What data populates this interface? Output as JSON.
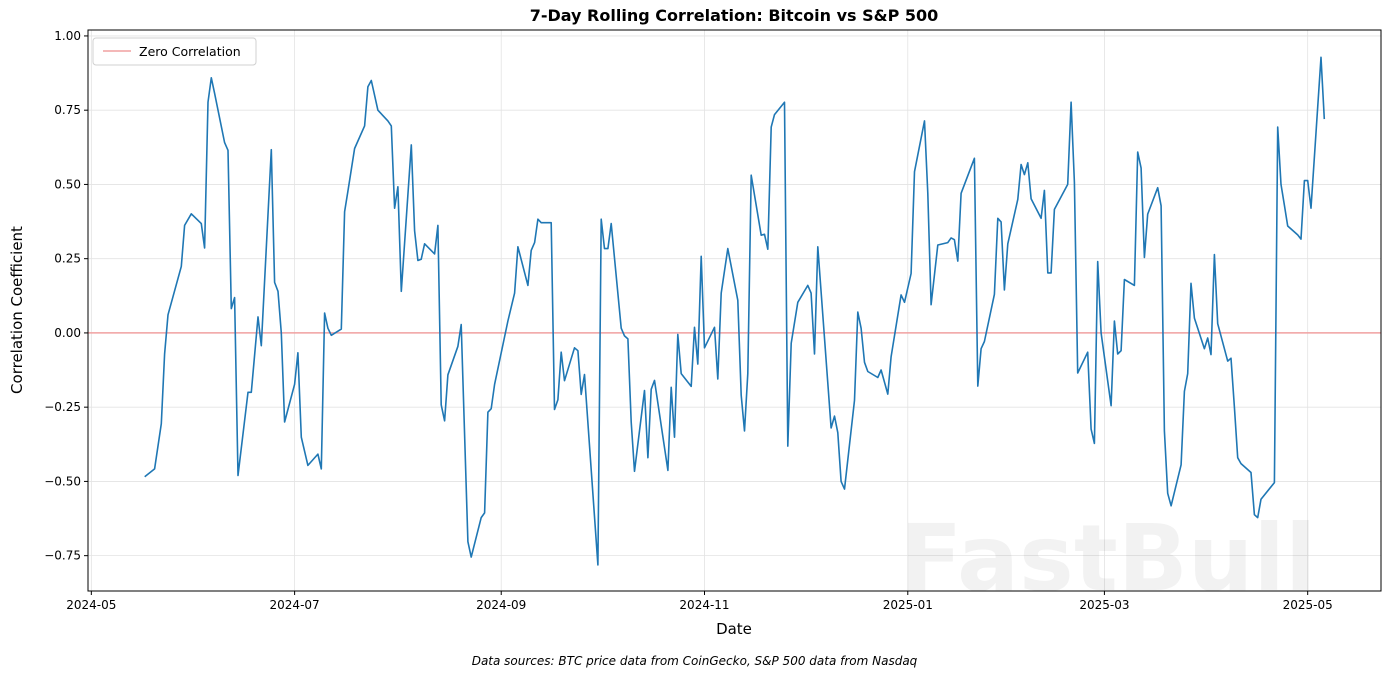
{
  "chart_data": {
    "type": "line",
    "title": "7-Day Rolling Correlation: Bitcoin vs S&P 500",
    "xlabel": "Date",
    "ylabel": "Correlation Coefficient",
    "xlim": [
      "2024-04-30",
      "2025-05-23"
    ],
    "ylim": [
      -0.869,
      1.02
    ],
    "x_ticks": [
      "2024-05",
      "2024-07",
      "2024-09",
      "2024-11",
      "2025-01",
      "2025-03",
      "2025-05"
    ],
    "y_ticks": [
      1.0,
      0.75,
      0.5,
      0.25,
      0.0,
      -0.25,
      -0.5,
      -0.75
    ],
    "y_tick_labels": [
      "1.00",
      "0.75",
      "0.50",
      "0.25",
      "0.00",
      "−0.25",
      "−0.50",
      "−0.75"
    ],
    "grid": true,
    "legend_position": "top-left",
    "reference_line": {
      "name": "Zero Correlation",
      "y": 0,
      "color": "#f0a0a0"
    },
    "series": [
      {
        "color": "#1f77b4",
        "x": [
          "2024-05-17",
          "2024-05-20",
          "2024-05-22",
          "2024-05-23",
          "2024-05-24",
          "2024-05-28",
          "2024-05-29",
          "2024-05-31",
          "2024-06-03",
          "2024-06-04",
          "2024-06-05",
          "2024-06-06",
          "2024-06-07",
          "2024-06-10",
          "2024-06-11",
          "2024-06-12",
          "2024-06-13",
          "2024-06-14",
          "2024-06-17",
          "2024-06-18",
          "2024-06-20",
          "2024-06-21",
          "2024-06-24",
          "2024-06-25",
          "2024-06-26",
          "2024-06-27",
          "2024-06-28",
          "2024-07-01",
          "2024-07-02",
          "2024-07-03",
          "2024-07-05",
          "2024-07-08",
          "2024-07-09",
          "2024-07-10",
          "2024-07-11",
          "2024-07-12",
          "2024-07-15",
          "2024-07-16",
          "2024-07-17",
          "2024-07-19",
          "2024-07-22",
          "2024-07-23",
          "2024-07-24",
          "2024-07-26",
          "2024-07-29",
          "2024-07-30",
          "2024-07-31",
          "2024-08-01",
          "2024-08-02",
          "2024-08-05",
          "2024-08-06",
          "2024-08-07",
          "2024-08-08",
          "2024-08-09",
          "2024-08-12",
          "2024-08-13",
          "2024-08-14",
          "2024-08-15",
          "2024-08-16",
          "2024-08-19",
          "2024-08-20",
          "2024-08-22",
          "2024-08-23",
          "2024-08-26",
          "2024-08-27",
          "2024-08-28",
          "2024-08-29",
          "2024-08-30",
          "2024-09-03",
          "2024-09-05",
          "2024-09-06",
          "2024-09-09",
          "2024-09-10",
          "2024-09-11",
          "2024-09-12",
          "2024-09-13",
          "2024-09-16",
          "2024-09-17",
          "2024-09-18",
          "2024-09-19",
          "2024-09-20",
          "2024-09-23",
          "2024-09-24",
          "2024-09-25",
          "2024-09-26",
          "2024-09-30",
          "2024-10-01",
          "2024-10-02",
          "2024-10-03",
          "2024-10-04",
          "2024-10-07",
          "2024-10-08",
          "2024-10-09",
          "2024-10-10",
          "2024-10-11",
          "2024-10-14",
          "2024-10-15",
          "2024-10-16",
          "2024-10-17",
          "2024-10-21",
          "2024-10-22",
          "2024-10-23",
          "2024-10-24",
          "2024-10-25",
          "2024-10-28",
          "2024-10-29",
          "2024-10-30",
          "2024-10-31",
          "2024-11-01",
          "2024-11-04",
          "2024-11-05",
          "2024-11-06",
          "2024-11-08",
          "2024-11-11",
          "2024-11-12",
          "2024-11-13",
          "2024-11-14",
          "2024-11-15",
          "2024-11-18",
          "2024-11-19",
          "2024-11-20",
          "2024-11-21",
          "2024-11-22",
          "2024-11-25",
          "2024-11-26",
          "2024-11-27",
          "2024-11-29",
          "2024-12-02",
          "2024-12-03",
          "2024-12-04",
          "2024-12-05",
          "2024-12-09",
          "2024-12-10",
          "2024-12-11",
          "2024-12-12",
          "2024-12-13",
          "2024-12-16",
          "2024-12-17",
          "2024-12-18",
          "2024-12-19",
          "2024-12-20",
          "2024-12-23",
          "2024-12-24",
          "2024-12-26",
          "2024-12-27",
          "2024-12-30",
          "2024-12-31",
          "2025-01-02",
          "2025-01-03",
          "2025-01-06",
          "2025-01-07",
          "2025-01-08",
          "2025-01-10",
          "2025-01-13",
          "2025-01-14",
          "2025-01-15",
          "2025-01-16",
          "2025-01-17",
          "2025-01-21",
          "2025-01-22",
          "2025-01-23",
          "2025-01-24",
          "2025-01-27",
          "2025-01-28",
          "2025-01-29",
          "2025-01-30",
          "2025-01-31",
          "2025-02-03",
          "2025-02-04",
          "2025-02-05",
          "2025-02-06",
          "2025-02-07",
          "2025-02-10",
          "2025-02-11",
          "2025-02-12",
          "2025-02-13",
          "2025-02-14",
          "2025-02-18",
          "2025-02-19",
          "2025-02-20",
          "2025-02-21",
          "2025-02-24",
          "2025-02-25",
          "2025-02-26",
          "2025-02-27",
          "2025-02-28",
          "2025-03-03",
          "2025-03-04",
          "2025-03-05",
          "2025-03-06",
          "2025-03-07",
          "2025-03-10",
          "2025-03-11",
          "2025-03-12",
          "2025-03-13",
          "2025-03-14",
          "2025-03-17",
          "2025-03-18",
          "2025-03-19",
          "2025-03-20",
          "2025-03-21",
          "2025-03-24",
          "2025-03-25",
          "2025-03-26",
          "2025-03-27",
          "2025-03-28",
          "2025-03-31",
          "2025-04-01",
          "2025-04-02",
          "2025-04-03",
          "2025-04-04",
          "2025-04-07",
          "2025-04-08",
          "2025-04-09",
          "2025-04-10",
          "2025-04-11",
          "2025-04-14",
          "2025-04-15",
          "2025-04-16",
          "2025-04-17",
          "2025-04-21",
          "2025-04-22",
          "2025-04-23",
          "2025-04-24",
          "2025-04-25",
          "2025-04-28",
          "2025-04-29",
          "2025-04-30",
          "2025-05-01",
          "2025-05-02",
          "2025-05-05",
          "2025-05-06"
        ],
        "y": [
          -0.484,
          -0.458,
          -0.306,
          -0.071,
          0.061,
          0.224,
          0.362,
          0.401,
          0.368,
          0.286,
          0.777,
          0.859,
          0.807,
          0.641,
          0.615,
          0.082,
          0.119,
          -0.48,
          -0.2,
          -0.2,
          0.054,
          -0.043,
          0.617,
          0.17,
          0.14,
          0.0,
          -0.3,
          -0.173,
          -0.067,
          -0.351,
          -0.446,
          -0.408,
          -0.458,
          0.067,
          0.016,
          -0.008,
          0.013,
          0.408,
          0.477,
          0.621,
          0.697,
          0.829,
          0.85,
          0.75,
          0.714,
          0.697,
          0.42,
          0.492,
          0.14,
          0.633,
          0.344,
          0.244,
          0.248,
          0.3,
          0.266,
          0.362,
          -0.242,
          -0.296,
          -0.141,
          -0.045,
          0.028,
          -0.703,
          -0.755,
          -0.622,
          -0.606,
          -0.267,
          -0.255,
          -0.173,
          0.04,
          0.134,
          0.29,
          0.16,
          0.278,
          0.304,
          0.383,
          0.371,
          0.371,
          -0.258,
          -0.225,
          -0.065,
          -0.161,
          -0.05,
          -0.06,
          -0.207,
          -0.14,
          -0.781,
          0.383,
          0.284,
          0.284,
          0.368,
          0.016,
          -0.01,
          -0.02,
          -0.3,
          -0.466,
          -0.194,
          -0.42,
          -0.19,
          -0.16,
          -0.463,
          -0.183,
          -0.351,
          -0.005,
          -0.137,
          -0.18,
          0.019,
          -0.105,
          0.258,
          -0.05,
          0.019,
          -0.155,
          0.134,
          0.284,
          0.11,
          -0.21,
          -0.33,
          -0.137,
          0.531,
          0.329,
          0.332,
          0.282,
          0.693,
          0.735,
          0.777,
          -0.381,
          -0.035,
          0.103,
          0.16,
          0.134,
          -0.071,
          0.29,
          -0.32,
          -0.28,
          -0.336,
          -0.5,
          -0.526,
          -0.227,
          0.07,
          0.016,
          -0.099,
          -0.13,
          -0.15,
          -0.125,
          -0.206,
          -0.08,
          0.128,
          0.103,
          0.2,
          0.543,
          0.714,
          0.47,
          0.095,
          0.296,
          0.304,
          0.32,
          0.314,
          0.242,
          0.47,
          0.588,
          -0.179,
          -0.053,
          -0.029,
          0.13,
          0.386,
          0.374,
          0.145,
          0.3,
          0.45,
          0.567,
          0.533,
          0.573,
          0.452,
          0.386,
          0.48,
          0.202,
          0.202,
          0.416,
          0.5,
          0.777,
          0.507,
          -0.135,
          -0.065,
          -0.324,
          -0.372,
          0.24,
          0.0,
          -0.245,
          0.04,
          -0.071,
          -0.06,
          0.18,
          0.16,
          0.609,
          0.555,
          0.254,
          0.4,
          0.489,
          0.428,
          -0.33,
          -0.54,
          -0.582,
          -0.444,
          -0.197,
          -0.137,
          0.167,
          0.05,
          -0.053,
          -0.017,
          -0.073,
          0.264,
          0.031,
          -0.095,
          -0.085,
          -0.25,
          -0.42,
          -0.44,
          -0.47,
          -0.612,
          -0.622,
          -0.56,
          -0.504,
          0.693,
          0.5,
          0.43,
          0.36,
          0.33,
          0.316,
          0.513,
          0.513,
          0.42,
          0.928,
          0.72
        ]
      }
    ]
  },
  "footer": "Data sources: BTC price data from CoinGecko, S&P 500 data from Nasdaq",
  "watermark": "FastBull"
}
